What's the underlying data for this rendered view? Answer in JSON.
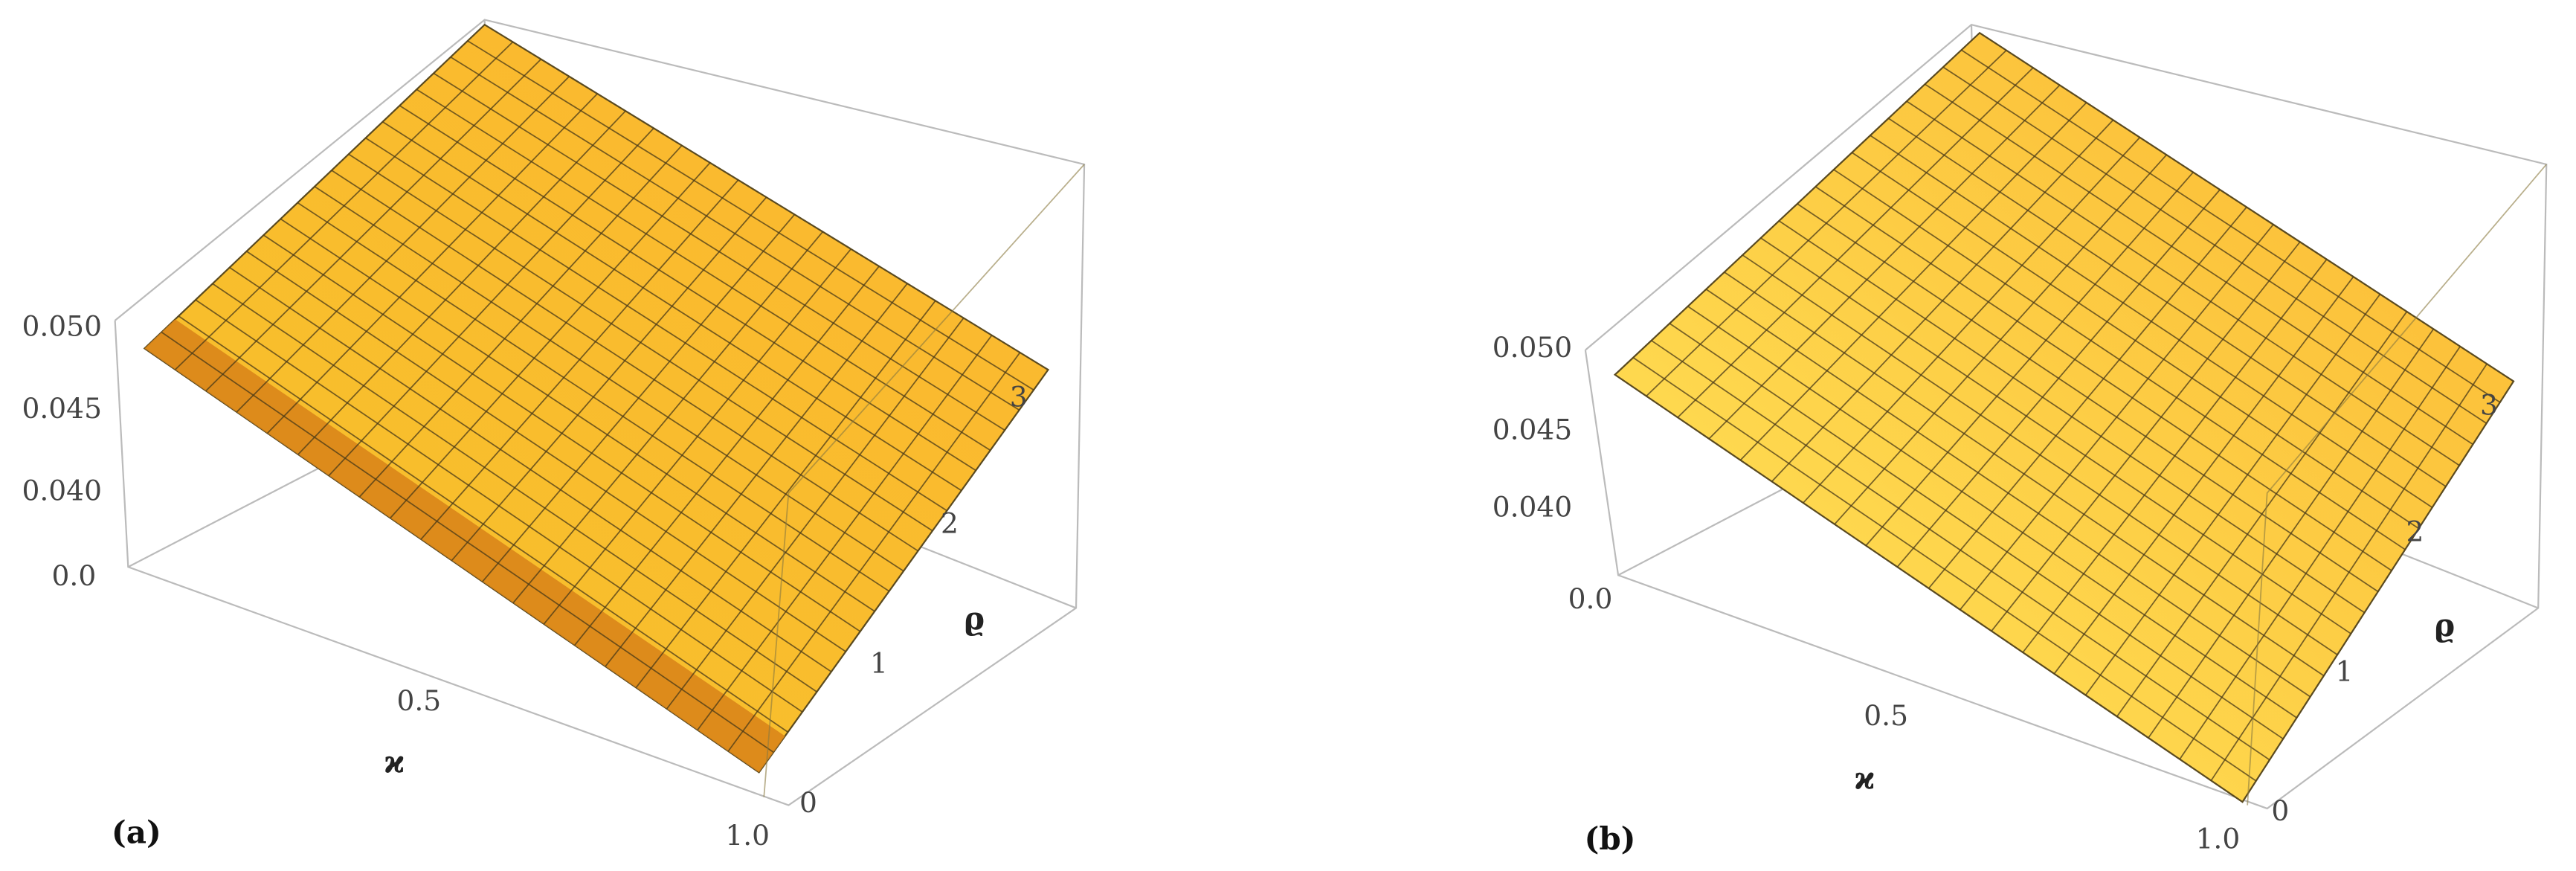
{
  "panels": [
    {
      "label": "(a)",
      "x_label": "ϰ",
      "y_label": "ϱ",
      "z_ticks": [
        {
          "value": 0.05,
          "label": "0.050"
        },
        {
          "value": 0.045,
          "label": "0.045"
        },
        {
          "value": 0.04,
          "label": "0.040"
        }
      ],
      "x_ticks": [
        {
          "value": 0,
          "label": "0.0"
        },
        0.5,
        {
          "value": 1,
          "label": "1.0"
        }
      ],
      "y_ticks": [
        0,
        1,
        2,
        3
      ]
    },
    {
      "label": "(b)",
      "x_label": "ϰ",
      "y_label": "ϱ",
      "z_ticks": [
        {
          "value": 0.05,
          "label": "0.050"
        },
        {
          "value": 0.045,
          "label": "0.045"
        },
        {
          "value": 0.04,
          "label": "0.040"
        }
      ],
      "x_ticks": [
        {
          "value": 0,
          "label": "0.0"
        },
        0.5,
        {
          "value": 1,
          "label": "1.0"
        }
      ],
      "y_ticks": [
        0,
        1,
        2,
        3
      ]
    }
  ]
}
